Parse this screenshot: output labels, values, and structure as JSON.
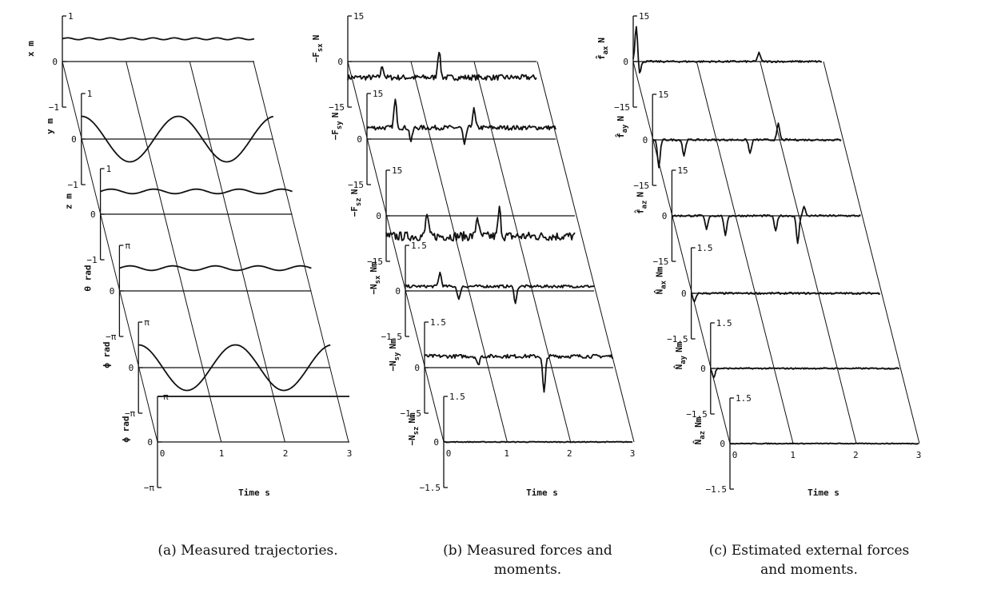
{
  "chart_data": [
    {
      "type": "line",
      "caption": "(a) Measured trajectories.",
      "xlabel": "Time s",
      "x_ticks": [
        "0",
        "1",
        "2",
        "3"
      ],
      "xlim": [
        0,
        3
      ],
      "rows": [
        {
          "ylabel": "x m",
          "ticks": [
            "1",
            "0",
            "−1"
          ],
          "shape": "const",
          "level": 0.5,
          "amp": 0.02,
          "freq": 3
        },
        {
          "ylabel": "y m",
          "ticks": [
            "1",
            "0",
            "−1"
          ],
          "shape": "sine",
          "level": 0.0,
          "amp": 0.5,
          "freq": 0.66,
          "phase": 1.57
        },
        {
          "ylabel": "z m",
          "ticks": [
            "1",
            "0",
            "−1"
          ],
          "shape": "const",
          "level": 0.5,
          "amp": 0.05,
          "freq": 1.5
        },
        {
          "ylabel": "θ rad",
          "ticks": [
            "π",
            "0",
            "−π"
          ],
          "shape": "const",
          "level": 0.5,
          "amp": 0.05,
          "freq": 1.5
        },
        {
          "ylabel": "ϕ rad",
          "ticks": [
            "π",
            "0",
            "−π"
          ],
          "shape": "sine",
          "level": 0.0,
          "amp": 0.5,
          "freq": 0.66,
          "phase": 1.57
        },
        {
          "ylabel": "ϕ rad",
          "ticks": [
            "π",
            "0",
            "−π"
          ],
          "shape": "const",
          "level": 1.0,
          "amp": 0.0,
          "freq": 1
        }
      ]
    },
    {
      "type": "line",
      "caption_lines": [
        "(b) Measured forces and",
        "moments."
      ],
      "xlabel": "Time s",
      "x_ticks": [
        "0",
        "1",
        "2",
        "3"
      ],
      "xlim": [
        0,
        3
      ],
      "rows": [
        {
          "ylabel": "−F",
          "ysub": "sx",
          "yunit": "N",
          "ticks": [
            "15",
            "0",
            "−15"
          ],
          "shape": "noisy",
          "level": -0.35,
          "amp": 0.06,
          "spikes": [
            [
              0.55,
              0.25
            ],
            [
              1.45,
              0.6
            ]
          ]
        },
        {
          "ylabel": "−F",
          "ysub": "sy",
          "yunit": "N",
          "ticks": [
            "15",
            "0",
            "−15"
          ],
          "shape": "noisy",
          "level": 0.25,
          "amp": 0.05,
          "spikes": [
            [
              0.45,
              0.6
            ],
            [
              0.7,
              -0.3
            ],
            [
              1.55,
              -0.4
            ],
            [
              1.7,
              0.4
            ]
          ]
        },
        {
          "ylabel": "−F",
          "ysub": "sz",
          "yunit": "N",
          "ticks": [
            "15",
            "0",
            "−15"
          ],
          "shape": "noisy",
          "level": -0.45,
          "amp": 0.1,
          "spikes": [
            [
              0.65,
              0.5
            ],
            [
              1.45,
              0.45
            ],
            [
              1.8,
              0.6
            ]
          ]
        },
        {
          "ylabel": "−N",
          "ysub": "sx",
          "yunit": "Nm",
          "ticks": [
            "1.5",
            "0",
            "−1.5"
          ],
          "shape": "noisy",
          "level": 0.1,
          "amp": 0.03,
          "spikes": [
            [
              0.55,
              0.3
            ],
            [
              0.85,
              -0.3
            ],
            [
              1.75,
              -0.35
            ]
          ]
        },
        {
          "ylabel": "−N",
          "ysub": "sy",
          "yunit": "Nm",
          "ticks": [
            "1.5",
            "0",
            "−1.5"
          ],
          "shape": "noisy",
          "level": 0.25,
          "amp": 0.04,
          "spikes": [
            [
              0.85,
              -0.2
            ],
            [
              1.9,
              -0.8
            ]
          ]
        },
        {
          "ylabel": "−N",
          "ysub": "sz",
          "yunit": "Nm",
          "ticks": [
            "1.5",
            "0",
            "−1.5"
          ],
          "shape": "noisy",
          "level": 0.0,
          "amp": 0.01,
          "spikes": []
        }
      ]
    },
    {
      "type": "line",
      "caption_lines": [
        "(c) Estimated external forces",
        "and moments."
      ],
      "xlabel": "Time s",
      "x_ticks": [
        "0",
        "1",
        "2",
        "3"
      ],
      "xlim": [
        0,
        3
      ],
      "rows": [
        {
          "ylabel": "f̂",
          "ysub": "ax",
          "yunit": "N",
          "ticks": [
            "15",
            "0",
            "−15"
          ],
          "shape": "noisy",
          "level": 0.0,
          "amp": 0.02,
          "spikes": [
            [
              0.05,
              0.8
            ],
            [
              0.1,
              -0.3
            ],
            [
              2.0,
              0.2
            ]
          ]
        },
        {
          "ylabel": "f̂",
          "ysub": "ay",
          "yunit": "N",
          "ticks": [
            "15",
            "0",
            "−15"
          ],
          "shape": "noisy",
          "level": 0.0,
          "amp": 0.02,
          "spikes": [
            [
              0.1,
              -0.6
            ],
            [
              0.5,
              -0.35
            ],
            [
              1.55,
              -0.3
            ],
            [
              2.0,
              0.35
            ]
          ]
        },
        {
          "ylabel": "f̂",
          "ysub": "az",
          "yunit": "N",
          "ticks": [
            "15",
            "0",
            "−15"
          ],
          "shape": "noisy",
          "level": 0.0,
          "amp": 0.02,
          "spikes": [
            [
              0.55,
              -0.3
            ],
            [
              0.85,
              -0.45
            ],
            [
              1.65,
              -0.35
            ],
            [
              2.0,
              -0.6
            ],
            [
              2.1,
              0.2
            ]
          ]
        },
        {
          "ylabel": "N̂",
          "ysub": "ax",
          "yunit": "Nm",
          "ticks": [
            "1.5",
            "0",
            "−1.5"
          ],
          "shape": "noisy",
          "level": 0.0,
          "amp": 0.02,
          "spikes": [
            [
              0.05,
              -0.2
            ]
          ]
        },
        {
          "ylabel": "N̂",
          "ysub": "ay",
          "yunit": "Nm",
          "ticks": [
            "1.5",
            "0",
            "−1.5"
          ],
          "shape": "noisy",
          "level": 0.0,
          "amp": 0.015,
          "spikes": [
            [
              0.05,
              -0.2
            ]
          ]
        },
        {
          "ylabel": "N̂",
          "ysub": "az",
          "yunit": "Nm",
          "ticks": [
            "1.5",
            "0",
            "−1.5"
          ],
          "shape": "noisy",
          "level": 0.0,
          "amp": 0.01,
          "spikes": []
        }
      ]
    }
  ]
}
